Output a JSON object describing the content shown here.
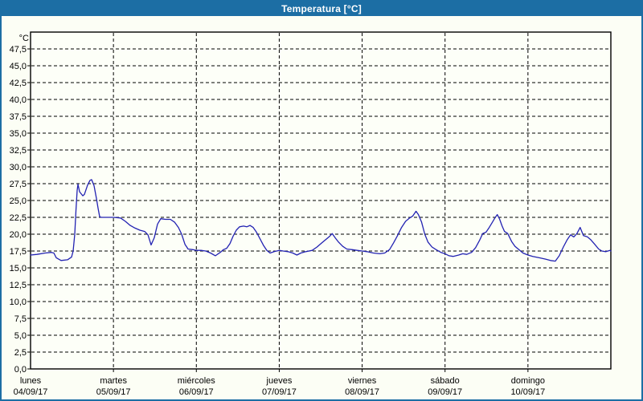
{
  "window": {
    "title": "Temperatura [°C]"
  },
  "colors": {
    "titlebar": "#1C6EA4",
    "window_border": "#1C6EA4",
    "background": "#FCFEF5",
    "plot_background": "#FDFFF8",
    "gridline": "#000000",
    "axis": "#000000",
    "series_line": "#2222B2",
    "text": "#000000",
    "title_text": "#FFFFFF"
  },
  "chart_data": {
    "type": "line",
    "title": "Temperatura [°C]",
    "y_axis": {
      "unit_label": "°C",
      "min": 0,
      "max": 47.5,
      "step": 2.5,
      "decimal_separator": ",",
      "tick_labels": [
        "0,0",
        "2,5",
        "5,0",
        "7,5",
        "10,0",
        "12,5",
        "15,0",
        "17,5",
        "20,0",
        "22,5",
        "25,0",
        "27,5",
        "30,0",
        "32,5",
        "35,0",
        "37,5",
        "40,0",
        "42,5",
        "45,0",
        "47,5"
      ]
    },
    "x_axis": {
      "span_days": 7,
      "days": [
        {
          "name": "lunes",
          "date": "04/09/17"
        },
        {
          "name": "martes",
          "date": "05/09/17"
        },
        {
          "name": "miércoles",
          "date": "06/09/17"
        },
        {
          "name": "jueves",
          "date": "07/09/17"
        },
        {
          "name": "viernes",
          "date": "08/09/17"
        },
        {
          "name": "sábado",
          "date": "09/09/17"
        },
        {
          "name": "domingo",
          "date": "10/09/17"
        }
      ]
    },
    "grid": {
      "horizontal_dashed": true,
      "vertical_dashed_at_day_boundaries": true
    },
    "legend": "none",
    "series": [
      {
        "name": "Temperatura",
        "unit": "°C",
        "points": [
          [
            0.0,
            16.9
          ],
          [
            0.078,
            17.0
          ],
          [
            0.175,
            17.2
          ],
          [
            0.252,
            17.3
          ],
          [
            0.281,
            17.2
          ],
          [
            0.31,
            16.5
          ],
          [
            0.368,
            16.1
          ],
          [
            0.446,
            16.2
          ],
          [
            0.494,
            16.6
          ],
          [
            0.514,
            17.5
          ],
          [
            0.533,
            20.0
          ],
          [
            0.548,
            23.5
          ],
          [
            0.562,
            26.5
          ],
          [
            0.572,
            27.4
          ],
          [
            0.591,
            26.3
          ],
          [
            0.63,
            25.7
          ],
          [
            0.65,
            25.9
          ],
          [
            0.688,
            27.3
          ],
          [
            0.717,
            28.0
          ],
          [
            0.737,
            28.1
          ],
          [
            0.766,
            27.2
          ],
          [
            0.795,
            25.3
          ],
          [
            0.815,
            23.8
          ],
          [
            0.834,
            22.6
          ],
          [
            0.853,
            22.5
          ],
          [
            0.9,
            22.5
          ],
          [
            0.95,
            22.5
          ],
          [
            1.0,
            22.5
          ],
          [
            1.086,
            22.4
          ],
          [
            1.144,
            21.9
          ],
          [
            1.202,
            21.3
          ],
          [
            1.26,
            20.9
          ],
          [
            1.319,
            20.6
          ],
          [
            1.377,
            20.4
          ],
          [
            1.416,
            19.9
          ],
          [
            1.454,
            18.4
          ],
          [
            1.493,
            19.5
          ],
          [
            1.532,
            21.5
          ],
          [
            1.571,
            22.3
          ],
          [
            1.629,
            22.2
          ],
          [
            1.687,
            22.2
          ],
          [
            1.736,
            21.8
          ],
          [
            1.784,
            21.0
          ],
          [
            1.823,
            20.0
          ],
          [
            1.862,
            18.5
          ],
          [
            1.9,
            17.8
          ],
          [
            1.959,
            17.7
          ],
          [
            2.0,
            17.6
          ],
          [
            2.058,
            17.6
          ],
          [
            2.114,
            17.5
          ],
          [
            2.172,
            17.2
          ],
          [
            2.23,
            16.8
          ],
          [
            2.288,
            17.3
          ],
          [
            2.327,
            17.7
          ],
          [
            2.366,
            17.9
          ],
          [
            2.405,
            18.6
          ],
          [
            2.443,
            19.7
          ],
          [
            2.482,
            20.6
          ],
          [
            2.521,
            21.1
          ],
          [
            2.569,
            21.2
          ],
          [
            2.608,
            21.1
          ],
          [
            2.647,
            21.3
          ],
          [
            2.686,
            21.0
          ],
          [
            2.725,
            20.3
          ],
          [
            2.773,
            19.2
          ],
          [
            2.812,
            18.3
          ],
          [
            2.85,
            17.6
          ],
          [
            2.889,
            17.2
          ],
          [
            2.938,
            17.4
          ],
          [
            3.0,
            17.6
          ],
          [
            3.048,
            17.5
          ],
          [
            3.106,
            17.4
          ],
          [
            3.164,
            17.2
          ],
          [
            3.213,
            16.9
          ],
          [
            3.261,
            17.2
          ],
          [
            3.319,
            17.4
          ],
          [
            3.397,
            17.6
          ],
          [
            3.455,
            18.1
          ],
          [
            3.513,
            18.7
          ],
          [
            3.571,
            19.3
          ],
          [
            3.61,
            19.7
          ],
          [
            3.639,
            20.1
          ],
          [
            3.678,
            19.4
          ],
          [
            3.717,
            18.8
          ],
          [
            3.765,
            18.2
          ],
          [
            3.814,
            17.8
          ],
          [
            3.882,
            17.7
          ],
          [
            3.94,
            17.6
          ],
          [
            4.0,
            17.5
          ],
          [
            4.058,
            17.4
          ],
          [
            4.136,
            17.2
          ],
          [
            4.213,
            17.1
          ],
          [
            4.272,
            17.2
          ],
          [
            4.33,
            17.7
          ],
          [
            4.378,
            18.7
          ],
          [
            4.427,
            19.8
          ],
          [
            4.475,
            21.0
          ],
          [
            4.524,
            21.9
          ],
          [
            4.572,
            22.4
          ],
          [
            4.611,
            22.7
          ],
          [
            4.65,
            23.4
          ],
          [
            4.679,
            22.9
          ],
          [
            4.717,
            21.8
          ],
          [
            4.756,
            20.0
          ],
          [
            4.795,
            18.8
          ],
          [
            4.843,
            18.1
          ],
          [
            4.892,
            17.7
          ],
          [
            4.95,
            17.3
          ],
          [
            5.0,
            17.1
          ],
          [
            5.048,
            16.8
          ],
          [
            5.097,
            16.7
          ],
          [
            5.165,
            16.9
          ],
          [
            5.213,
            17.1
          ],
          [
            5.262,
            17.0
          ],
          [
            5.32,
            17.3
          ],
          [
            5.368,
            18.0
          ],
          [
            5.417,
            19.1
          ],
          [
            5.455,
            20.1
          ],
          [
            5.494,
            20.3
          ],
          [
            5.533,
            21.0
          ],
          [
            5.572,
            21.8
          ],
          [
            5.601,
            22.4
          ],
          [
            5.63,
            22.9
          ],
          [
            5.659,
            22.2
          ],
          [
            5.688,
            21.2
          ],
          [
            5.717,
            20.4
          ],
          [
            5.756,
            20.1
          ],
          [
            5.804,
            18.9
          ],
          [
            5.843,
            18.2
          ],
          [
            5.891,
            17.7
          ],
          [
            5.94,
            17.2
          ],
          [
            6.0,
            16.9
          ],
          [
            6.058,
            16.7
          ],
          [
            6.136,
            16.5
          ],
          [
            6.213,
            16.3
          ],
          [
            6.272,
            16.1
          ],
          [
            6.33,
            16.0
          ],
          [
            6.378,
            16.8
          ],
          [
            6.427,
            18.1
          ],
          [
            6.475,
            19.2
          ],
          [
            6.514,
            19.9
          ],
          [
            6.553,
            19.6
          ],
          [
            6.591,
            20.1
          ],
          [
            6.63,
            21.0
          ],
          [
            6.669,
            19.8
          ],
          [
            6.718,
            19.6
          ],
          [
            6.756,
            19.2
          ],
          [
            6.805,
            18.5
          ],
          [
            6.853,
            17.8
          ],
          [
            6.892,
            17.5
          ],
          [
            6.94,
            17.4
          ],
          [
            6.989,
            17.6
          ],
          [
            7.0,
            17.5
          ]
        ]
      }
    ]
  }
}
